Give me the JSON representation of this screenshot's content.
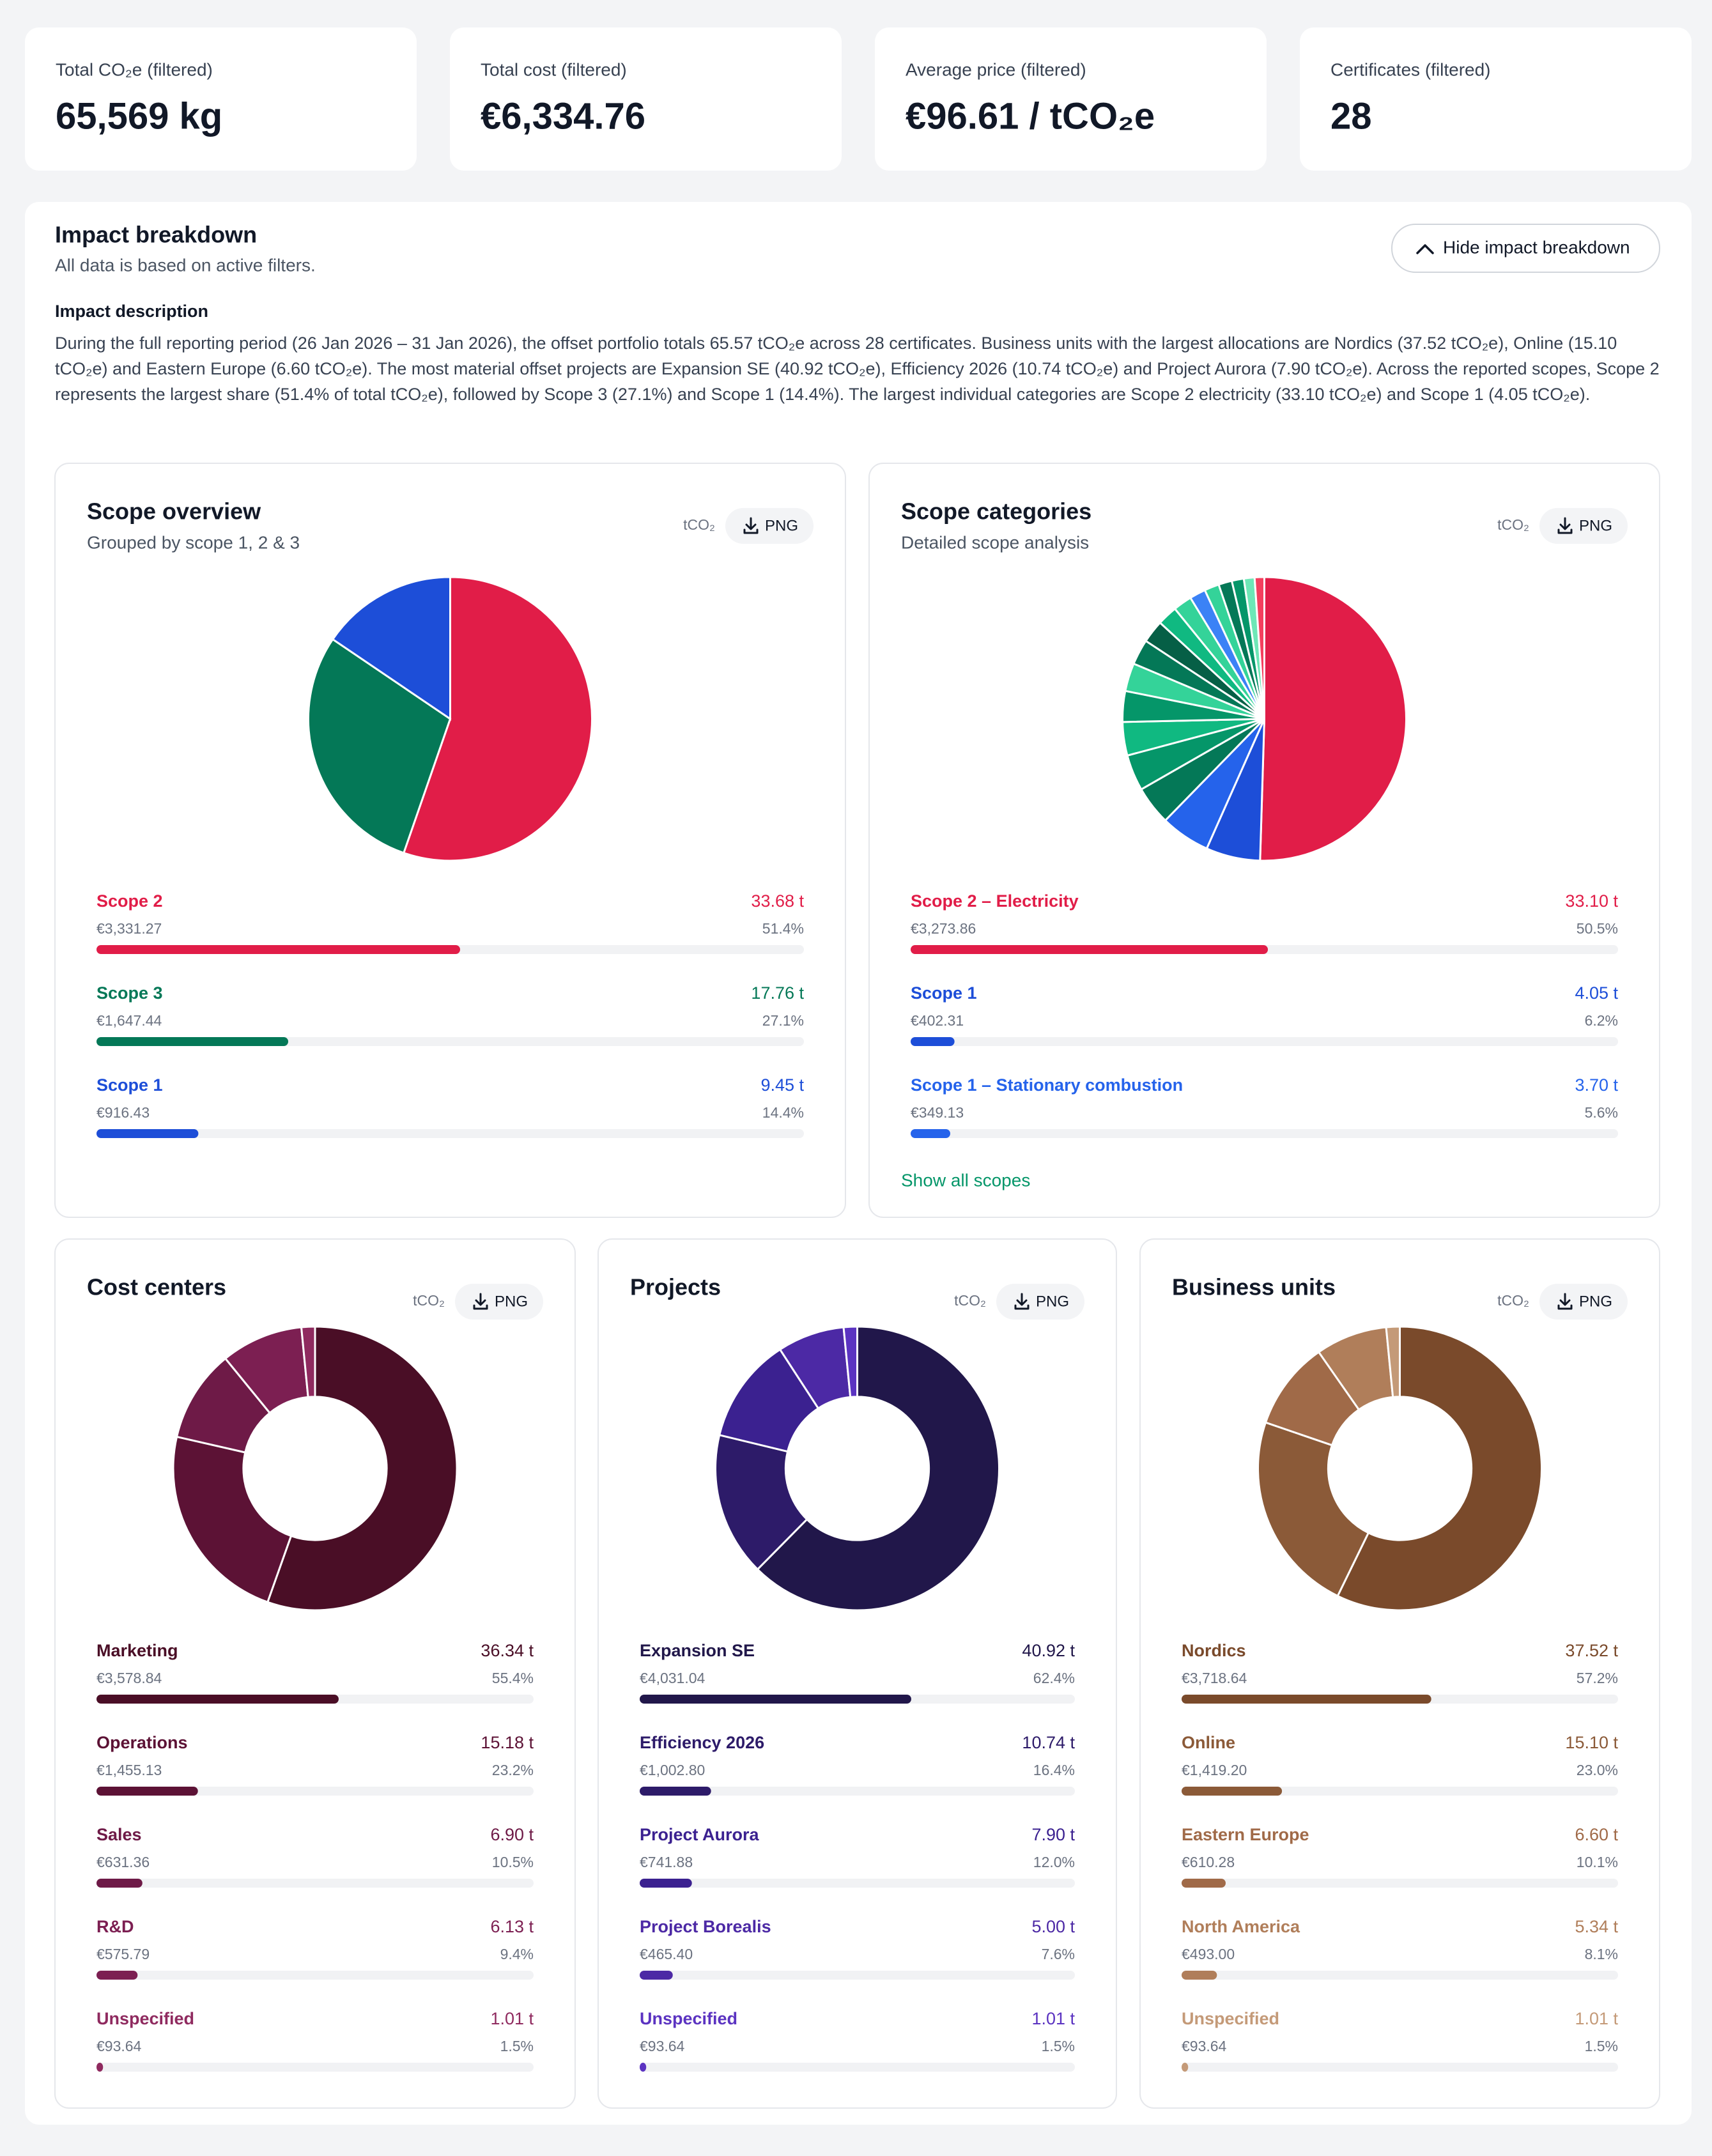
{
  "kpis": [
    {
      "label": "Total CO₂e (filtered)",
      "value": "65,569 kg"
    },
    {
      "label": "Total cost (filtered)",
      "value": "€6,334.76"
    },
    {
      "label": "Average price (filtered)",
      "value": "€96.61 / tCO₂e"
    },
    {
      "label": "Certificates (filtered)",
      "value": "28"
    }
  ],
  "impact": {
    "title": "Impact breakdown",
    "subtitle": "All data is based on active filters.",
    "toggle": "Hide impact breakdown",
    "description_title": "Impact description",
    "description": "During the full reporting period (26 Jan 2026 – 31 Jan 2026), the offset portfolio totals 65.57 tCO₂e across 28 certificates. Business units with the largest allocations are Nordics (37.52 tCO₂e), Online (15.10 tCO₂e) and Eastern Europe (6.60 tCO₂e). The most material offset projects are Expansion SE (40.92 tCO₂e), Efficiency 2026 (10.74 tCO₂e) and Project Aurora (7.90 tCO₂e). Across the reported scopes, Scope 2 represents the largest share (51.4% of total tCO₂e), followed by Scope 3 (27.1%) and Scope 1 (14.4%). The largest individual categories are Scope 2 electricity (33.10 tCO₂e) and Scope 1 (4.05 tCO₂e)."
  },
  "chart_data": [
    {
      "type": "pie",
      "title": "Scope overview",
      "subtitle": "Grouped by scope 1, 2 & 3",
      "unit": "tCO₂",
      "export": "PNG",
      "categories": [
        "Scope 2",
        "Scope 3",
        "Scope 1"
      ],
      "values": [
        33.68,
        17.76,
        9.45
      ],
      "value_labels": [
        "33.68 t",
        "17.76 t",
        "9.45 t"
      ],
      "costs": [
        "€3,331.27",
        "€1,647.44",
        "€916.43"
      ],
      "shares": [
        51.4,
        27.1,
        14.4
      ],
      "share_labels": [
        "51.4%",
        "27.1%",
        "14.4%"
      ],
      "colors": [
        "#e11d48",
        "#047857",
        "#1d4ed8"
      ]
    },
    {
      "type": "pie",
      "title": "Scope categories",
      "subtitle": "Detailed scope analysis",
      "unit": "tCO₂",
      "export": "PNG",
      "categories": [
        "Scope 2 – Electricity",
        "Scope 1",
        "Scope 1 – Stationary combustion",
        null,
        null,
        null,
        null,
        null,
        null,
        null,
        null,
        null,
        null,
        null,
        null,
        null,
        null,
        null
      ],
      "values": [
        33.1,
        4.05,
        3.7,
        2.9,
        2.7,
        2.5,
        2.3,
        2.1,
        1.9,
        1.7,
        1.5,
        1.4,
        1.2,
        1.1,
        1.0,
        0.9,
        0.8,
        0.72
      ],
      "value_labels": [
        "33.10 t",
        "4.05 t",
        "3.70 t",
        null,
        null,
        null,
        null,
        null,
        null,
        null,
        null,
        null,
        null,
        null,
        null,
        null,
        null,
        null
      ],
      "costs": [
        "€3,273.86",
        "€402.31",
        "€349.13",
        null,
        null,
        null,
        null,
        null,
        null,
        null,
        null,
        null,
        null,
        null,
        null,
        null,
        null,
        null
      ],
      "shares": [
        50.5,
        6.2,
        5.6,
        null,
        null,
        null,
        null,
        null,
        null,
        null,
        null,
        null,
        null,
        null,
        null,
        null,
        null,
        null
      ],
      "share_labels": [
        "50.5%",
        "6.2%",
        "5.6%",
        null,
        null,
        null,
        null,
        null,
        null,
        null,
        null,
        null,
        null,
        null,
        null,
        null,
        null,
        null
      ],
      "colors": [
        "#e11d48",
        "#1d4ed8",
        "#2563eb",
        "#047857",
        "#059669",
        "#10b981",
        "#059669",
        "#34d399",
        "#047857",
        "#065f46",
        "#10b981",
        "#34d399",
        "#3b82f6",
        "#34d399",
        "#047857",
        "#059669",
        "#6ee7b7",
        "#f43f5e"
      ],
      "more": "Show all scopes"
    },
    {
      "type": "donut",
      "title": "Cost centers",
      "unit": "tCO₂",
      "export": "PNG",
      "categories": [
        "Marketing",
        "Operations",
        "Sales",
        "R&D",
        "Unspecified"
      ],
      "values": [
        36.34,
        15.18,
        6.9,
        6.13,
        1.01
      ],
      "value_labels": [
        "36.34 t",
        "15.18 t",
        "6.90 t",
        "6.13 t",
        "1.01 t"
      ],
      "costs": [
        "€3,578.84",
        "€1,455.13",
        "€631.36",
        "€575.79",
        "€93.64"
      ],
      "shares": [
        55.4,
        23.2,
        10.5,
        9.4,
        1.5
      ],
      "share_labels": [
        "55.4%",
        "23.2%",
        "10.5%",
        "9.4%",
        "1.5%"
      ],
      "colors": [
        "#4a0e26",
        "#5c1235",
        "#6e1a47",
        "#7c1f52",
        "#8f2a5f"
      ]
    },
    {
      "type": "donut",
      "title": "Projects",
      "unit": "tCO₂",
      "export": "PNG",
      "categories": [
        "Expansion SE",
        "Efficiency 2026",
        "Project Aurora",
        "Project Borealis",
        "Unspecified"
      ],
      "values": [
        40.92,
        10.74,
        7.9,
        5.0,
        1.01
      ],
      "value_labels": [
        "40.92 t",
        "10.74 t",
        "7.90 t",
        "5.00 t",
        "1.01 t"
      ],
      "costs": [
        "€4,031.04",
        "€1,002.80",
        "€741.88",
        "€465.40",
        "€93.64"
      ],
      "shares": [
        62.4,
        16.4,
        12.0,
        7.6,
        1.5
      ],
      "share_labels": [
        "62.4%",
        "16.4%",
        "12.0%",
        "7.6%",
        "1.5%"
      ],
      "colors": [
        "#21174a",
        "#2d1b69",
        "#3b2190",
        "#4c29a5",
        "#5b33c1"
      ]
    },
    {
      "type": "donut",
      "title": "Business units",
      "unit": "tCO₂",
      "export": "PNG",
      "categories": [
        "Nordics",
        "Online",
        "Eastern Europe",
        "North America",
        "Unspecified"
      ],
      "values": [
        37.52,
        15.1,
        6.6,
        5.34,
        1.01
      ],
      "value_labels": [
        "37.52 t",
        "15.10 t",
        "6.60 t",
        "5.34 t",
        "1.01 t"
      ],
      "costs": [
        "€3,718.64",
        "€1,419.20",
        "€610.28",
        "€493.00",
        "€93.64"
      ],
      "shares": [
        57.2,
        23.0,
        10.1,
        8.1,
        1.5
      ],
      "share_labels": [
        "57.2%",
        "23.0%",
        "10.1%",
        "8.1%",
        "1.5%"
      ],
      "colors": [
        "#7a4a2b",
        "#8b5a38",
        "#a06a48",
        "#b07e5a",
        "#c49a78"
      ]
    }
  ]
}
